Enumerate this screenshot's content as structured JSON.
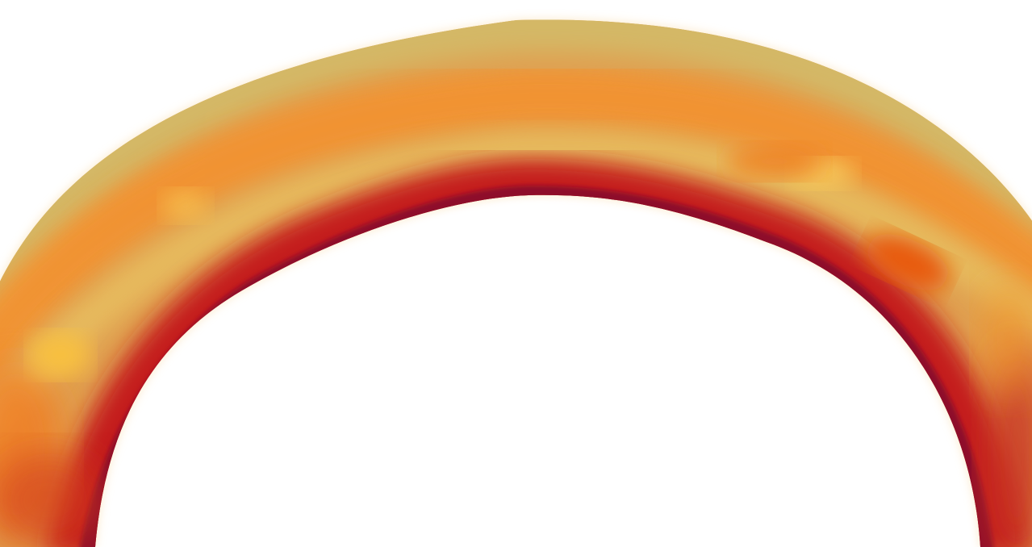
{
  "scene": {
    "subject": "arch-ring",
    "background_color": "#ffffff",
    "colors": {
      "outer_rim": "#d4b866",
      "upper_band_gold": "#e8c46a",
      "mid_band_orange": "#f29330",
      "bright_spot_yellow": "#f8c040",
      "hot_spot_orange": "#e85a10",
      "inner_band_red": "#c41e1e",
      "inner_edge_crimson": "#8e0a2a",
      "glow_cream": "#fbe6c2"
    }
  }
}
